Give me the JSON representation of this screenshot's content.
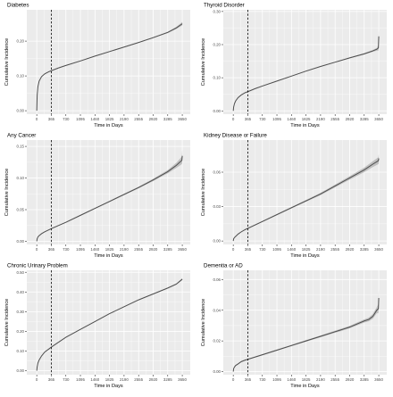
{
  "figure": {
    "background": "#ffffff",
    "panel_background": "#ebebeb",
    "grid_color": "#ffffff",
    "line_color": "#4d4d4d",
    "band_color": "#b0b0b0",
    "reference_line_color": "#000000"
  },
  "chart_data": [
    {
      "type": "line",
      "title": "Diabetes",
      "xlabel": "Time in Days",
      "ylabel": "Cumulative Incidence",
      "xticks": [
        0,
        365,
        730,
        1095,
        1460,
        1825,
        2190,
        2555,
        2920,
        3285,
        3650
      ],
      "yticks": [
        0.0,
        0.1,
        0.2
      ],
      "ytick_labels": [
        "0.00",
        "0.10",
        "0.20"
      ],
      "xlim": [
        -250,
        3850
      ],
      "ylim": [
        -0.01,
        0.29
      ],
      "grid": true,
      "vline_x": 365,
      "x": [
        0,
        10,
        30,
        60,
        120,
        200,
        300,
        365,
        547,
        730,
        1095,
        1460,
        1825,
        2190,
        2555,
        2920,
        3285,
        3500,
        3650
      ],
      "values": [
        0.0,
        0.045,
        0.07,
        0.085,
        0.098,
        0.106,
        0.112,
        0.115,
        0.123,
        0.13,
        0.143,
        0.157,
        0.17,
        0.183,
        0.196,
        0.21,
        0.225,
        0.238,
        0.25
      ],
      "band_halfwidth": [
        0.0,
        0.001,
        0.001,
        0.001,
        0.001,
        0.001,
        0.001,
        0.001,
        0.001,
        0.001,
        0.001,
        0.001,
        0.001,
        0.001,
        0.001,
        0.0015,
        0.002,
        0.003,
        0.005
      ]
    },
    {
      "type": "line",
      "title": "Thyroid Disorder",
      "xlabel": "Time in Days",
      "ylabel": "Cumulative Incidence",
      "xticks": [
        0,
        365,
        730,
        1095,
        1460,
        1825,
        2190,
        2555,
        2920,
        3285,
        3650
      ],
      "yticks": [
        0.0,
        0.1,
        0.2,
        0.3
      ],
      "ytick_labels": [
        "0.00",
        "0.10",
        "0.20",
        "0.30"
      ],
      "xlim": [
        -250,
        3850
      ],
      "ylim": [
        -0.01,
        0.305
      ],
      "grid": true,
      "vline_x": 365,
      "x": [
        0,
        10,
        30,
        60,
        120,
        200,
        300,
        365,
        547,
        730,
        1095,
        1460,
        1825,
        2190,
        2555,
        2920,
        3285,
        3500,
        3600,
        3640,
        3650
      ],
      "values": [
        0.0,
        0.012,
        0.022,
        0.03,
        0.04,
        0.048,
        0.055,
        0.058,
        0.067,
        0.075,
        0.09,
        0.105,
        0.12,
        0.134,
        0.147,
        0.16,
        0.172,
        0.181,
        0.186,
        0.19,
        0.225
      ],
      "band_halfwidth": [
        0.0,
        0.001,
        0.001,
        0.001,
        0.001,
        0.001,
        0.001,
        0.001,
        0.001,
        0.001,
        0.001,
        0.001,
        0.001,
        0.001,
        0.001,
        0.0015,
        0.002,
        0.003,
        0.004,
        0.008,
        0.02
      ]
    },
    {
      "type": "line",
      "title": "Any Cancer",
      "xlabel": "Time in Days",
      "ylabel": "Cumulative Incidence",
      "xticks": [
        0,
        365,
        730,
        1095,
        1460,
        1825,
        2190,
        2555,
        2920,
        3285,
        3650
      ],
      "yticks": [
        0.0,
        0.05,
        0.1,
        0.15
      ],
      "ytick_labels": [
        "0.00",
        "0.05",
        "0.10",
        "0.15"
      ],
      "xlim": [
        -250,
        3850
      ],
      "ylim": [
        -0.005,
        0.16
      ],
      "grid": true,
      "vline_x": 365,
      "x": [
        0,
        10,
        30,
        60,
        120,
        200,
        300,
        365,
        730,
        1095,
        1460,
        1825,
        2190,
        2555,
        2920,
        3285,
        3500,
        3640,
        3650
      ],
      "values": [
        0.0,
        0.004,
        0.007,
        0.009,
        0.012,
        0.015,
        0.018,
        0.02,
        0.03,
        0.041,
        0.052,
        0.063,
        0.074,
        0.085,
        0.097,
        0.11,
        0.12,
        0.128,
        0.135
      ],
      "band_halfwidth": [
        0.0,
        0.0005,
        0.0005,
        0.0005,
        0.0005,
        0.0005,
        0.0005,
        0.0005,
        0.0007,
        0.0008,
        0.0009,
        0.001,
        0.0012,
        0.0014,
        0.0018,
        0.0025,
        0.004,
        0.006,
        0.01
      ]
    },
    {
      "type": "line",
      "title": "Kidney Disease or Failure",
      "xlabel": "Time in Days",
      "ylabel": "Cumulative Incidence",
      "xticks": [
        0,
        365,
        730,
        1095,
        1460,
        1825,
        2190,
        2555,
        2920,
        3285,
        3650
      ],
      "yticks": [
        0.0,
        0.03,
        0.06
      ],
      "ytick_labels": [
        "0.00",
        "0.03",
        "0.06"
      ],
      "xlim": [
        -250,
        3850
      ],
      "ylim": [
        -0.003,
        0.088
      ],
      "grid": true,
      "vline_x": 365,
      "x": [
        0,
        10,
        30,
        60,
        120,
        200,
        300,
        365,
        730,
        1095,
        1460,
        1825,
        2190,
        2555,
        2920,
        3285,
        3500,
        3640,
        3650
      ],
      "values": [
        0.0,
        0.002,
        0.003,
        0.004,
        0.006,
        0.008,
        0.01,
        0.011,
        0.017,
        0.023,
        0.029,
        0.035,
        0.041,
        0.048,
        0.055,
        0.062,
        0.067,
        0.07,
        0.072
      ],
      "band_halfwidth": [
        0.0,
        0.0003,
        0.0003,
        0.0003,
        0.0003,
        0.0003,
        0.0004,
        0.0004,
        0.0005,
        0.0006,
        0.0007,
        0.0008,
        0.001,
        0.0012,
        0.0015,
        0.002,
        0.0025,
        0.003,
        0.004
      ]
    },
    {
      "type": "line",
      "title": "Chronic Urinary Problem",
      "xlabel": "Time in Days",
      "ylabel": "Cumulative Incidence",
      "xticks": [
        0,
        365,
        730,
        1095,
        1460,
        1825,
        2190,
        2555,
        2920,
        3285,
        3650
      ],
      "yticks": [
        0.0,
        0.1,
        0.2,
        0.3,
        0.4,
        0.5
      ],
      "ytick_labels": [
        "0.00",
        "0.10",
        "0.20",
        "0.30",
        "0.40",
        "0.50"
      ],
      "xlim": [
        -250,
        3850
      ],
      "ylim": [
        -0.02,
        0.51
      ],
      "grid": true,
      "vline_x": 365,
      "x": [
        0,
        10,
        30,
        60,
        120,
        200,
        300,
        365,
        547,
        730,
        1095,
        1460,
        1825,
        2190,
        2555,
        2920,
        3285,
        3500,
        3650
      ],
      "values": [
        0.0,
        0.02,
        0.04,
        0.055,
        0.075,
        0.095,
        0.11,
        0.12,
        0.145,
        0.17,
        0.21,
        0.25,
        0.29,
        0.325,
        0.36,
        0.39,
        0.42,
        0.44,
        0.465
      ],
      "band_halfwidth": [
        0.0,
        0.001,
        0.001,
        0.001,
        0.001,
        0.001,
        0.001,
        0.001,
        0.001,
        0.0012,
        0.0013,
        0.0014,
        0.0015,
        0.0016,
        0.0018,
        0.002,
        0.0025,
        0.003,
        0.004
      ]
    },
    {
      "type": "line",
      "title": "Dementia or AD",
      "xlabel": "Time in Days",
      "ylabel": "Cumulative Incidence",
      "xticks": [
        0,
        365,
        730,
        1095,
        1460,
        1825,
        2190,
        2555,
        2920,
        3285,
        3650
      ],
      "yticks": [
        0.0,
        0.02,
        0.04,
        0.06
      ],
      "ytick_labels": [
        "0.00",
        "0.02",
        "0.04",
        "0.06"
      ],
      "xlim": [
        -250,
        3850
      ],
      "ylim": [
        -0.002,
        0.066
      ],
      "grid": true,
      "vline_x": 365,
      "x": [
        0,
        10,
        30,
        60,
        120,
        200,
        300,
        365,
        730,
        1095,
        1460,
        1825,
        2190,
        2555,
        2920,
        3285,
        3400,
        3500,
        3600,
        3640,
        3650
      ],
      "values": [
        0.0,
        0.002,
        0.003,
        0.004,
        0.005,
        0.0065,
        0.0075,
        0.008,
        0.011,
        0.014,
        0.017,
        0.02,
        0.023,
        0.026,
        0.029,
        0.033,
        0.034,
        0.036,
        0.04,
        0.041,
        0.048
      ],
      "band_halfwidth": [
        0.0,
        0.0003,
        0.0003,
        0.0003,
        0.0003,
        0.0003,
        0.0003,
        0.0003,
        0.0004,
        0.0004,
        0.0005,
        0.0005,
        0.0006,
        0.0007,
        0.0008,
        0.001,
        0.0012,
        0.0015,
        0.002,
        0.003,
        0.006
      ]
    }
  ]
}
